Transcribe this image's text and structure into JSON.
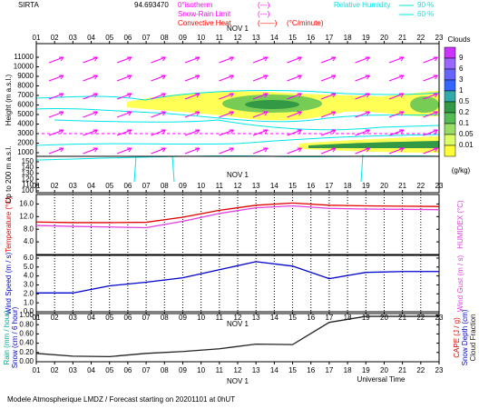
{
  "page": {
    "station": "SIRTA",
    "coords": "94.693470",
    "footer": "Modele Atmospherique LMDZ / Forecast starting on 20201101 at 0hUT",
    "date_label": "NOV  1",
    "xlabel": "Universal Time"
  },
  "chart_data": [
    {
      "type": "contour",
      "ylabel": "Height (m a.s.l.)",
      "y2label": "Up to 200 m a.s.l.",
      "xlim": [
        1,
        23
      ],
      "xticks": [
        {
          "value": 1,
          "label": "01"
        },
        {
          "value": 2,
          "label": "02"
        },
        {
          "value": 3,
          "label": "03"
        },
        {
          "value": 4,
          "label": "04"
        },
        {
          "value": 5,
          "label": "05"
        },
        {
          "value": 6,
          "label": "06"
        },
        {
          "value": 7,
          "label": "07"
        },
        {
          "value": 8,
          "label": "08"
        },
        {
          "value": 9,
          "label": "09"
        },
        {
          "value": 10,
          "label": "10"
        },
        {
          "value": 11,
          "label": "11"
        },
        {
          "value": 12,
          "label": "12"
        },
        {
          "value": 13,
          "label": "13"
        },
        {
          "value": 14,
          "label": "14"
        },
        {
          "value": 15,
          "label": "15"
        },
        {
          "value": 16,
          "label": "16"
        },
        {
          "value": 17,
          "label": "17"
        },
        {
          "value": 18,
          "label": "18"
        },
        {
          "value": 19,
          "label": "19"
        },
        {
          "value": 20,
          "label": "20"
        },
        {
          "value": 21,
          "label": "21"
        },
        {
          "value": 22,
          "label": "22"
        },
        {
          "value": 23,
          "label": "23"
        }
      ],
      "ylim": [
        620,
        12430
      ],
      "yticks": [
        1000,
        2000,
        3000,
        4000,
        5000,
        6000,
        7000,
        8000,
        9000,
        10000,
        11000
      ],
      "y2lim": [
        100,
        159.4
      ],
      "y2ticks": [
        100,
        110,
        120,
        130,
        140,
        150
      ],
      "legend": [
        {
          "name": "0°isotherm",
          "style": "(---)",
          "color": "#ff00ff"
        },
        {
          "name": "Snow-Rain Limit",
          "style": "(---)",
          "color": "#ff00ff"
        },
        {
          "name": "Convective Heat",
          "style": "(——)",
          "unit": "(°C/minute)",
          "color": "#ff0000"
        }
      ],
      "humidity": {
        "name": "Relative Humidity",
        "levels": [
          "90 %",
          "60 %"
        ],
        "color": "#00e5e5"
      },
      "colorbar": {
        "title": "Clouds",
        "unit": "(g/kg)",
        "labels": [
          "9",
          "6",
          "3",
          "1",
          "0.5",
          "0.2",
          "0.1",
          "0.05",
          "0.01"
        ],
        "colors": [
          "#cc33ff",
          "#9966ff",
          "#6666ff",
          "#3366ff",
          "#33aaaa",
          "#339944",
          "#55bb55",
          "#99dd66",
          "#ddff66",
          "#ffff33"
        ]
      }
    },
    {
      "type": "line",
      "ylim": [
        0,
        19
      ],
      "yticks": [
        {
          "value": 4,
          "label": "4.0"
        },
        {
          "value": 8,
          "label": "8.0"
        },
        {
          "value": 12,
          "label": "12.0"
        },
        {
          "value": 16,
          "label": "16.0"
        }
      ],
      "x": [
        1,
        3,
        5,
        7,
        9,
        11,
        13,
        15,
        17,
        19,
        21,
        23
      ],
      "series": [
        {
          "name": "Temperature (°C)",
          "color": "#e00000",
          "values": [
            10.3,
            10.1,
            10.1,
            10.2,
            11.8,
            14.0,
            15.6,
            16.3,
            15.6,
            15.4,
            15.3,
            15.2
          ]
        },
        {
          "name": "HUMIDEX (°C)",
          "color": "#e040e0",
          "axis": "y2",
          "values": [
            9.2,
            8.9,
            8.7,
            8.5,
            10.5,
            13.0,
            14.8,
            15.4,
            14.6,
            14.4,
            14.3,
            14.2
          ]
        }
      ]
    },
    {
      "type": "line",
      "ylim": [
        0,
        6.3
      ],
      "y2label": "Wind Gust (m / s)",
      "yticks": [
        {
          "value": 0,
          "label": "0.0"
        },
        {
          "value": 1,
          "label": "1.0"
        },
        {
          "value": 2,
          "label": "2.0"
        },
        {
          "value": 3,
          "label": "3.0"
        },
        {
          "value": 4,
          "label": "4.0"
        },
        {
          "value": 5,
          "label": "5.0"
        },
        {
          "value": 6,
          "label": "6.0"
        }
      ],
      "x": [
        1,
        3,
        5,
        7,
        9,
        11,
        13,
        15,
        17,
        19,
        21,
        23
      ],
      "series": [
        {
          "name": "Wind Speed (m / s)",
          "color": "#0000cc",
          "values": [
            2.1,
            2.1,
            2.9,
            3.3,
            3.8,
            4.7,
            5.6,
            5.1,
            3.7,
            4.4,
            4.5,
            4.5
          ]
        }
      ]
    },
    {
      "type": "line",
      "ylim": [
        0,
        1.04
      ],
      "ylabels": [
        "Rain (mm / hour)",
        "Snow (cm / 6 hour)"
      ],
      "y2labels": [
        "CAPE (J / g)",
        "Snow Depth (cm)"
      ],
      "yticks": [
        {
          "value": 0,
          "label": "0.00"
        },
        {
          "value": 0.2,
          "label": "0.20"
        },
        {
          "value": 0.4,
          "label": "0.40"
        },
        {
          "value": 0.6,
          "label": "0.60"
        },
        {
          "value": 0.8,
          "label": "0.80"
        },
        {
          "value": 1,
          "label": "1.00"
        }
      ],
      "x": [
        1,
        3,
        5,
        7,
        9,
        11,
        13,
        15,
        17,
        19,
        21,
        23
      ],
      "series": [
        {
          "name": "Cloud Fraction",
          "color": "#222222",
          "values": [
            0.18,
            0.12,
            0.11,
            0.18,
            0.22,
            0.28,
            0.38,
            0.37,
            0.85,
            0.98,
            0.98,
            0.98
          ]
        }
      ]
    }
  ]
}
